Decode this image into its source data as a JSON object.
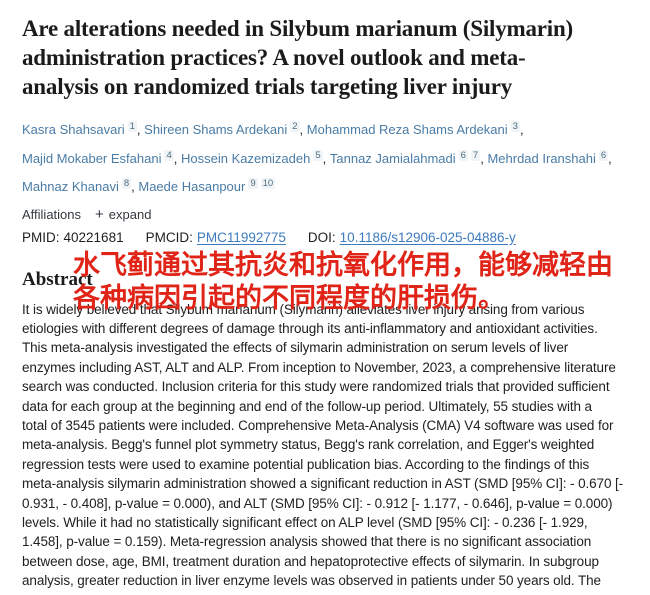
{
  "article": {
    "title": "Are alterations needed in Silybum marianum (Silymarin) administration practices? A novel outlook and meta-analysis on randomized trials targeting liver injury",
    "authors": [
      {
        "name": "Kasra Shahsavari",
        "refs": [
          "1"
        ]
      },
      {
        "name": "Shireen Shams Ardekani",
        "refs": [
          "2"
        ]
      },
      {
        "name": "Mohammad Reza Shams Ardekani",
        "refs": [
          "3"
        ]
      },
      {
        "name": "Majid Mokaber Esfahani",
        "refs": [
          "4"
        ]
      },
      {
        "name": "Hossein Kazemizadeh",
        "refs": [
          "5"
        ]
      },
      {
        "name": "Tannaz Jamialahmadi",
        "refs": [
          "6",
          "7"
        ]
      },
      {
        "name": "Mehrdad Iranshahi",
        "refs": [
          "6"
        ]
      },
      {
        "name": "Mahnaz Khanavi",
        "refs": [
          "8"
        ]
      },
      {
        "name": "Maede Hasanpour",
        "refs": [
          "9",
          "10"
        ]
      }
    ],
    "affiliations_label": "Affiliations",
    "expand": {
      "plus_icon": "+",
      "label": "expand"
    },
    "identifiers": {
      "pmid_label": "PMID:",
      "pmid_value": "40221681",
      "pmcid_label": "PMCID:",
      "pmcid_value": "PMC11992775",
      "doi_label": "DOI:",
      "doi_value": "10.1186/s12906-025-04886-y"
    },
    "abstract_heading": "Abstract",
    "abstract_lines": [
      "It is widely believed that Silybum marianum (Silymarin) alleviates liver injury arising from various",
      "etiologies with different degrees of damage through its anti-inflammatory and antioxidant activities.",
      "This meta-analysis investigated the effects of silymarin administration on serum levels of liver",
      "enzymes including AST, ALT and ALP. From inception to November, 2023, a comprehensive literature",
      "search was conducted. Inclusion criteria for this study were randomized trials that provided sufficient",
      "data for each group at the beginning and end of the follow-up period. Ultimately, 55 studies with a",
      "total of 3545 patients were included. Comprehensive Meta-Analysis (CMA) V4 software was used for",
      "meta-analysis. Begg's funnel plot symmetry status, Begg's rank correlation, and Egger's weighted",
      "regression tests were used to examine potential publication bias. According to the findings of this",
      "meta-analysis silymarin administration showed a significant reduction in AST (SMD [95% CI]: - 0.670 [-",
      "0.931, - 0.408], p-value = 0.000), and ALT (SMD [95% CI]: - 0.912 [- 1.177, - 0.646], p-value = 0.000)",
      "levels. While it had no statistically significant effect on ALP level (SMD [95% CI]: - 0.236 [- 1.929,",
      "1.458], p-value = 0.159). Meta-regression analysis showed that there is no significant association",
      "between dose, age, BMI, treatment duration and hepatoprotective effects of silymarin. In subgroup",
      "analysis, greater reduction in liver enzyme levels was observed in patients under 50 years old. The"
    ]
  },
  "annotation": {
    "line1": "水飞蓟通过其抗炎和抗氧化作用，能够减轻由",
    "line2": "各种病因引起的不同程度的肝损伤。",
    "color": "#e02518"
  },
  "colors": {
    "author_link": "#4a7ca6",
    "id_link": "#3c7bbe",
    "body_text": "#212121",
    "annotation_red": "#e02518",
    "background": "#ffffff"
  }
}
